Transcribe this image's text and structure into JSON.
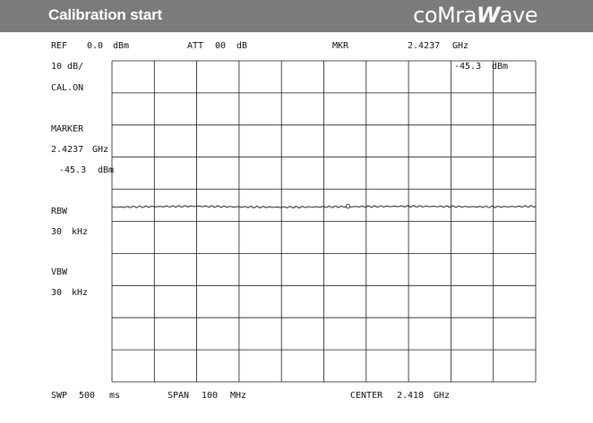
{
  "header": {
    "title": "Calibration start",
    "brand_prefix": "coMra",
    "brand_w": "W",
    "brand_suffix": "ave"
  },
  "topbar": {
    "ref_label": "REF",
    "ref_value": "0.0",
    "ref_unit": "dBm",
    "att_label": "ATT",
    "att_value": "00",
    "att_unit": "dB",
    "mkr_label": "MKR",
    "mkr_value": "2.4237",
    "mkr_unit": "GHz"
  },
  "marker_readout": {
    "value": "-45.3",
    "unit": "dBm"
  },
  "side_panel": {
    "scale": "10 dB/",
    "cal": "CAL.ON",
    "marker_label": "MARKER",
    "marker_freq": "2.4237",
    "marker_freq_unit": "GHz",
    "marker_level": "-45.3",
    "marker_level_unit": "dBm",
    "rbw_label": "RBW",
    "rbw_value": "30",
    "rbw_unit": "kHz",
    "vbw_label": "VBW",
    "vbw_value": "30",
    "vbw_unit": "kHz"
  },
  "bottombar": {
    "swp_label": "SWP",
    "swp_value": "500",
    "swp_unit": "ms",
    "span_label": "SPAN",
    "span_value": "100",
    "span_unit": "MHz",
    "center_label": "CENTER",
    "center_value": "2.418",
    "center_unit": "GHz"
  },
  "colors": {
    "header_bg": "#7b7b7b",
    "grid": "#1a1a1a",
    "trace": "#222222"
  },
  "chart_data": {
    "type": "line",
    "title": "",
    "xlabel": "",
    "ylabel": "",
    "x_center_ghz": 2.418,
    "x_span_mhz": 100,
    "xlim": [
      2.368,
      2.468
    ],
    "ylim": [
      -100,
      0
    ],
    "y_divisions": 10,
    "x_divisions": 10,
    "grid": true,
    "series": [
      {
        "x": [
          2.368,
          2.378,
          2.388,
          2.398,
          2.408,
          2.418,
          2.428,
          2.438,
          2.448,
          2.458,
          2.468
        ],
        "y": [
          -45.6,
          -45.4,
          -45.3,
          -45.5,
          -45.6,
          -45.5,
          -45.4,
          -45.3,
          -45.4,
          -45.5,
          -45.3
        ]
      }
    ],
    "marker": {
      "x": 2.4237,
      "y": -45.3
    }
  }
}
